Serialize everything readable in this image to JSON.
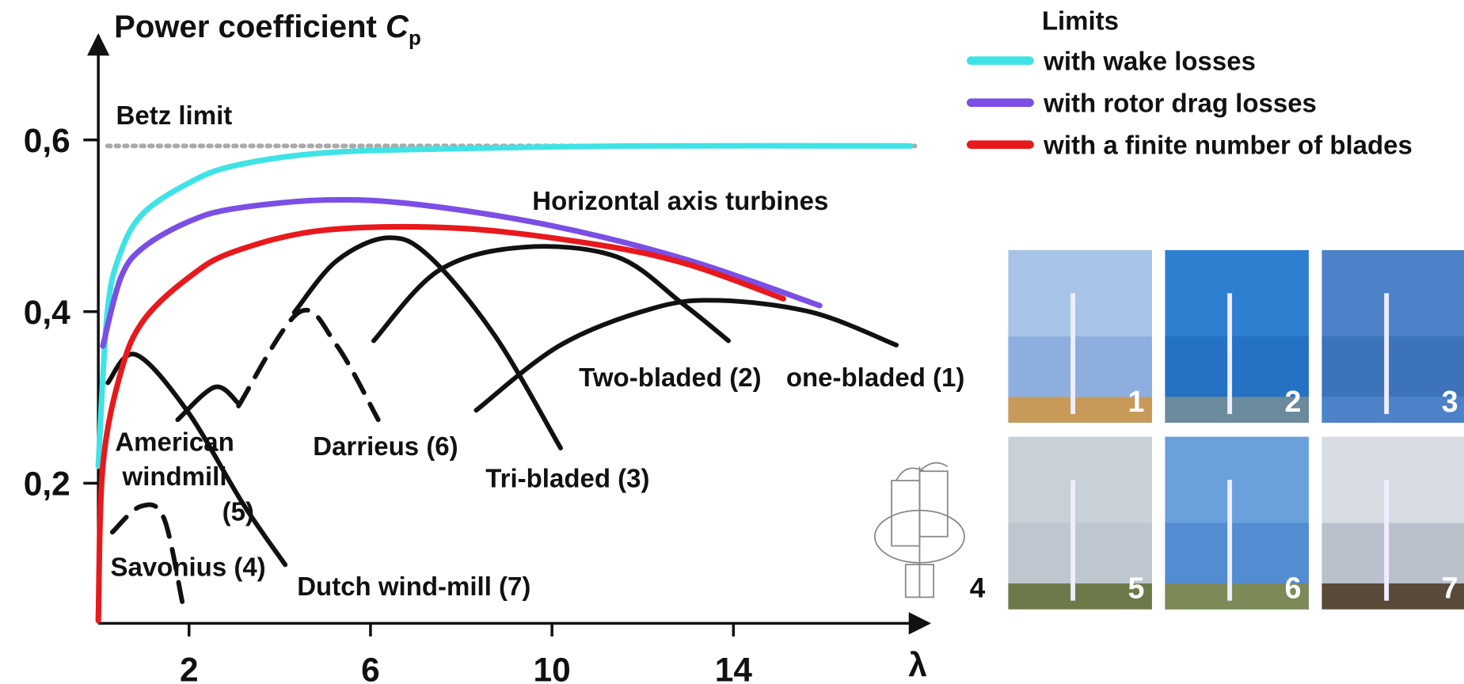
{
  "chart_data": {
    "type": "line",
    "title": "Power coefficient",
    "title_symbol": "C",
    "title_subscript": "p",
    "x_label": "λ",
    "xlim": [
      0,
      18
    ],
    "ylim": [
      0.04,
      0.72
    ],
    "xticks": [
      2,
      6,
      10,
      14
    ],
    "yticks": [
      {
        "value": 0.2,
        "label": "0,2"
      },
      {
        "value": 0.4,
        "label": "0,4"
      },
      {
        "value": 0.6,
        "label": "0,6"
      }
    ],
    "betz": {
      "label": "Betz limit",
      "value": 0.593
    },
    "legend_title": "Limits",
    "legend_position": "top-right",
    "annotation": "Horizontal axis turbines",
    "series": [
      {
        "name": "with wake losses",
        "color": "#3fe3e6",
        "x": [
          0,
          0.2,
          0.5,
          1,
          2,
          3,
          5,
          8,
          12,
          17.9
        ],
        "values": [
          0.22,
          0.4,
          0.47,
          0.515,
          0.55,
          0.57,
          0.585,
          0.59,
          0.593,
          0.593
        ]
      },
      {
        "name": "with rotor drag losses",
        "color": "#7b4fe6",
        "x": [
          0.1,
          0.5,
          1,
          2,
          3,
          5,
          7,
          10,
          13,
          15.9
        ],
        "values": [
          0.36,
          0.44,
          0.475,
          0.505,
          0.52,
          0.53,
          0.525,
          0.5,
          0.46,
          0.407
        ]
      },
      {
        "name": "with a finite number of blades",
        "color": "#e8191c",
        "x": [
          0,
          0.1,
          0.5,
          1,
          2,
          3,
          5,
          8,
          11,
          13,
          15.1
        ],
        "values": [
          0.04,
          0.22,
          0.33,
          0.39,
          0.44,
          0.47,
          0.495,
          0.497,
          0.478,
          0.455,
          0.415
        ]
      }
    ],
    "turbines": [
      {
        "name": "Savonius (4)",
        "color": "#111111",
        "dashed": true,
        "x": [
          0.31,
          0.93,
          1.44,
          1.85
        ],
        "values": [
          0.143,
          0.173,
          0.16,
          0.062
        ]
      },
      {
        "name": "American windmill (5)",
        "color": "#111111",
        "dashed": false,
        "x": [
          0.21,
          0.82,
          1.95,
          3.19,
          4.12
        ],
        "values": [
          0.317,
          0.35,
          0.285,
          0.176,
          0.105
        ]
      },
      {
        "name": "Dutch wind-mill (7)",
        "color": "#111111",
        "dashed": false,
        "x": [
          1.75,
          2.57,
          3.09
        ],
        "values": [
          0.274,
          0.312,
          0.293
        ]
      },
      {
        "name": "Darrieus (6)",
        "color": "#111111",
        "dashed": true,
        "x": [
          3.09,
          4.42,
          5.25,
          6.17
        ],
        "values": [
          0.29,
          0.399,
          0.361,
          0.274
        ]
      },
      {
        "name": "Tri-bladed (3)",
        "color": "#111111",
        "dashed": false,
        "x": [
          4.32,
          5.25,
          6.38,
          7.3,
          8.74,
          10.19
        ],
        "values": [
          0.399,
          0.459,
          0.486,
          0.464,
          0.372,
          0.241
        ]
      },
      {
        "name": "Two-bladed (2)",
        "color": "#111111",
        "dashed": false,
        "x": [
          6.07,
          7.51,
          9.36,
          11.42,
          12.86,
          13.89
        ],
        "values": [
          0.366,
          0.448,
          0.475,
          0.464,
          0.41,
          0.366
        ]
      },
      {
        "name": "one-bladed (1)",
        "color": "#111111",
        "dashed": false,
        "x": [
          8.33,
          10.19,
          12.24,
          13.68,
          15.74,
          17.59
        ],
        "values": [
          0.285,
          0.361,
          0.404,
          0.413,
          0.399,
          0.361
        ]
      }
    ],
    "sketch_label": "4",
    "photos": [
      "1",
      "2",
      "3",
      "5",
      "6",
      "7"
    ]
  }
}
